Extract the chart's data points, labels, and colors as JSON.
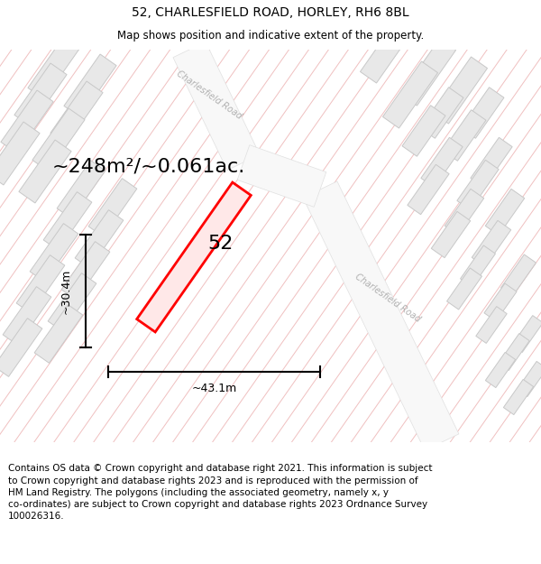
{
  "title": "52, CHARLESFIELD ROAD, HORLEY, RH6 8BL",
  "subtitle": "Map shows position and indicative extent of the property.",
  "footer_line1": "Contains OS data © Crown copyright and database right 2021. This information is subject",
  "footer_line2": "to Crown copyright and database rights 2023 and is reproduced with the permission of",
  "footer_line3": "HM Land Registry. The polygons (including the associated geometry, namely x, y",
  "footer_line4": "co-ordinates) are subject to Crown copyright and database rights 2023 Ordnance Survey",
  "footer_line5": "100026316.",
  "area_label": "~248m²/~0.061ac.",
  "width_label": "~43.1m",
  "height_label": "~30.4m",
  "property_number": "52",
  "bg_color": "#ffffff",
  "map_bg": "#fdf5f5",
  "stripe_color": "#f0c0c0",
  "road_color": "#f0f0f0",
  "building_fill": "#e0e0e0",
  "building_edge": "#cccccc",
  "plot_fill": "#ffe8e8",
  "plot_edge": "#ff0000",
  "title_fontsize": 10,
  "subtitle_fontsize": 8.5,
  "footer_fontsize": 7.5,
  "area_fontsize": 16,
  "dim_fontsize": 9,
  "num_fontsize": 16
}
